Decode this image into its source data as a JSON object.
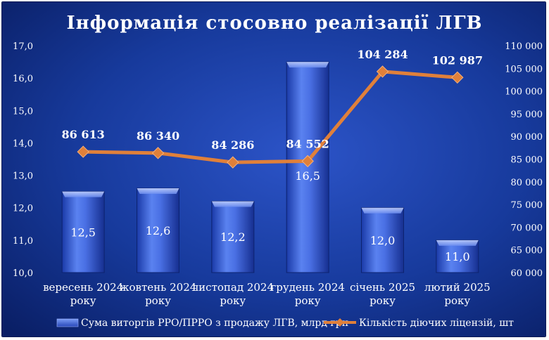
{
  "chart_data": {
    "type": "bar",
    "title": "Інформація стосовно реалізації ЛГВ",
    "categories": [
      [
        "вересень 2024",
        "року"
      ],
      [
        "жовтень 2024",
        "року"
      ],
      [
        "листопад 2024",
        "року"
      ],
      [
        "грудень 2024",
        "року"
      ],
      [
        "січень 2025",
        "року"
      ],
      [
        "лютий 2025",
        "року"
      ]
    ],
    "series": [
      {
        "name": "Сума виторгів РРО/ПРРО з продажу ЛГВ, млрд грн",
        "type": "bar",
        "axis": "left",
        "values": [
          12.5,
          12.6,
          12.2,
          16.5,
          12.0,
          11.0
        ],
        "labels": [
          "12,5",
          "12,6",
          "12,2",
          "16,5",
          "12,0",
          "11,0"
        ],
        "color": "#3a5fd8"
      },
      {
        "name": "Кількість діючих ліцензій, шт",
        "type": "line",
        "axis": "right",
        "values": [
          86613,
          86340,
          84286,
          84552,
          104284,
          102987
        ],
        "labels": [
          "86 613",
          "86 340",
          "84 286",
          "84 552",
          "104 284",
          "102 987"
        ],
        "color": "#e0803a"
      }
    ],
    "ylim_left": [
      10.0,
      17.0
    ],
    "ylim_right": [
      60000,
      110000
    ],
    "left_ticks": [
      "10,0",
      "11,0",
      "12,0",
      "13,0",
      "14,0",
      "15,0",
      "16,0",
      "17,0"
    ],
    "right_ticks": [
      "60 000",
      "65 000",
      "70 000",
      "75 000",
      "80 000",
      "85 000",
      "90 000",
      "95 000",
      "100 000",
      "105 000",
      "110 000"
    ],
    "grid": false,
    "legend_position": "bottom"
  }
}
